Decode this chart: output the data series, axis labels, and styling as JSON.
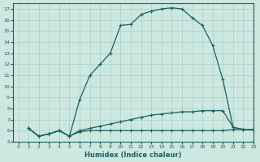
{
  "xlabel": "Humidex (Indice chaleur)",
  "bg_color": "#cce8e0",
  "grid_color": "#aad0c8",
  "line_color": "#1a6060",
  "xlim": [
    -0.5,
    23
  ],
  "ylim": [
    5,
    17.5
  ],
  "yticks": [
    5,
    6,
    7,
    8,
    9,
    10,
    11,
    12,
    13,
    14,
    15,
    16,
    17
  ],
  "xticks": [
    0,
    1,
    2,
    3,
    4,
    5,
    6,
    7,
    8,
    9,
    10,
    11,
    12,
    13,
    14,
    15,
    16,
    17,
    18,
    19,
    20,
    21,
    22,
    23
  ],
  "line1_x": [
    1,
    2,
    3,
    4,
    5,
    6,
    7,
    8,
    9,
    10,
    11,
    12,
    13,
    14,
    15,
    16,
    17,
    18,
    19,
    20,
    21,
    22,
    23
  ],
  "line1_y": [
    6.2,
    5.5,
    5.7,
    6.0,
    5.5,
    5.9,
    6.0,
    6.0,
    6.0,
    6.0,
    6.0,
    6.0,
    6.0,
    6.0,
    6.0,
    6.0,
    6.0,
    6.0,
    6.0,
    6.0,
    6.1,
    6.1,
    6.1
  ],
  "line2_x": [
    1,
    2,
    3,
    4,
    5,
    6,
    7,
    8,
    9,
    10,
    11,
    12,
    13,
    14,
    15,
    16,
    17,
    18,
    19,
    20,
    21,
    22,
    23
  ],
  "line2_y": [
    6.2,
    5.5,
    5.7,
    6.0,
    5.5,
    6.0,
    6.2,
    6.4,
    6.6,
    6.8,
    7.0,
    7.2,
    7.4,
    7.5,
    7.6,
    7.7,
    7.7,
    7.8,
    7.8,
    7.8,
    6.3,
    6.1,
    6.1
  ],
  "line3_x": [
    1,
    2,
    3,
    4,
    5,
    6,
    7,
    8,
    9,
    10,
    11,
    12,
    13,
    14,
    15,
    16,
    17,
    18,
    19,
    20,
    21,
    22,
    23
  ],
  "line3_y": [
    6.2,
    5.5,
    5.7,
    6.0,
    5.5,
    8.8,
    11.0,
    12.0,
    13.0,
    15.5,
    15.6,
    16.5,
    16.8,
    17.0,
    17.1,
    17.0,
    16.2,
    15.5,
    13.7,
    10.6,
    6.3,
    6.1,
    6.1
  ]
}
